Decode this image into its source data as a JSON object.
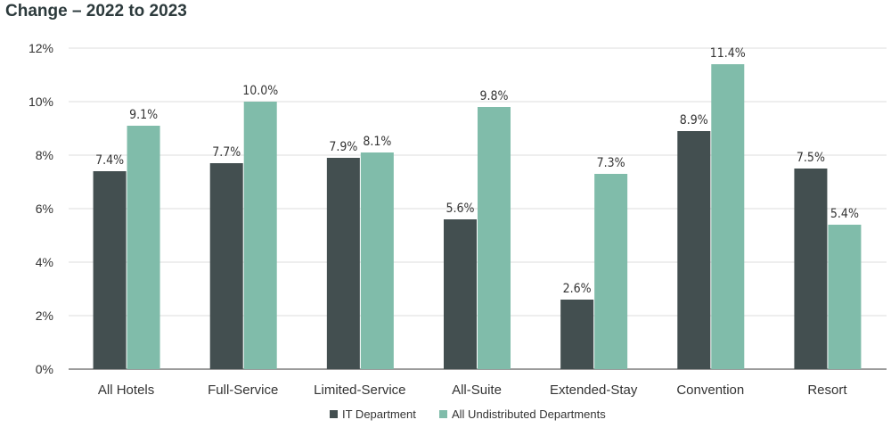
{
  "chart_data": {
    "type": "bar",
    "title": "Change – 2022 to 2023",
    "categories": [
      "All Hotels",
      "Full-Service",
      "Limited-Service",
      "All-Suite",
      "Extended-Stay",
      "Convention",
      "Resort"
    ],
    "series": [
      {
        "name": "IT Department",
        "color": "#434f50",
        "values": [
          7.4,
          7.7,
          7.9,
          5.6,
          2.6,
          8.9,
          7.5
        ],
        "labels": [
          "7.4%",
          "7.7%",
          "7.9%",
          "5.6%",
          "2.6%",
          "8.9%",
          "7.5%"
        ]
      },
      {
        "name": "All Undistributed Departments",
        "color": "#80bcaa",
        "values": [
          9.1,
          10.0,
          8.1,
          9.8,
          7.3,
          11.4,
          5.4
        ],
        "labels": [
          "9.1%",
          "10.0%",
          "8.1%",
          "9.8%",
          "7.3%",
          "11.4%",
          "5.4%"
        ]
      }
    ],
    "ylim": [
      0,
      12
    ],
    "yticks": [
      "0%",
      "2%",
      "4%",
      "6%",
      "8%",
      "10%",
      "12%"
    ],
    "grid": true,
    "legend": "bottom"
  }
}
